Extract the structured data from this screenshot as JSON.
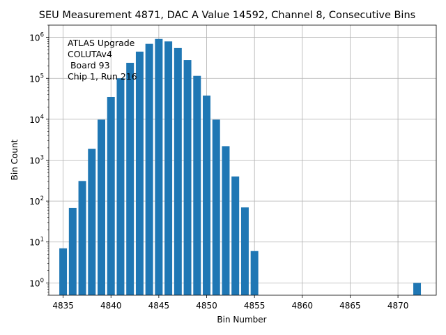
{
  "chart_data": {
    "type": "bar",
    "title": "SEU Measurement 4871, DAC A Value 14592, Channel 8, Consecutive Bins",
    "xlabel": "Bin Number",
    "ylabel": "Bin Count",
    "yscale": "log",
    "xlim": [
      4833.5,
      4874
    ],
    "ylim": [
      0.5,
      2000000
    ],
    "grid": true,
    "bar_color": "#1f77b4",
    "x": [
      4835,
      4836,
      4837,
      4838,
      4839,
      4840,
      4841,
      4842,
      4843,
      4844,
      4845,
      4846,
      4847,
      4848,
      4849,
      4850,
      4851,
      4852,
      4853,
      4854,
      4855,
      4872
    ],
    "values": [
      7,
      68,
      310,
      1900,
      9800,
      35000,
      100000,
      240000,
      450000,
      700000,
      920000,
      800000,
      550000,
      280000,
      115000,
      38000,
      9800,
      2200,
      400,
      70,
      6,
      1
    ],
    "x_ticks": [
      "4835",
      "4840",
      "4845",
      "4850",
      "4855",
      "4860",
      "4865",
      "4870"
    ],
    "x_tick_values": [
      4835,
      4840,
      4845,
      4850,
      4855,
      4860,
      4865,
      4870
    ],
    "y_ticks": [
      {
        "base": "10",
        "exp": "0",
        "value": 1
      },
      {
        "base": "10",
        "exp": "1",
        "value": 10
      },
      {
        "base": "10",
        "exp": "2",
        "value": 100
      },
      {
        "base": "10",
        "exp": "3",
        "value": 1000
      },
      {
        "base": "10",
        "exp": "4",
        "value": 10000
      },
      {
        "base": "10",
        "exp": "5",
        "value": 100000
      },
      {
        "base": "10",
        "exp": "6",
        "value": 1000000
      }
    ],
    "annotation_lines": [
      "ATLAS Upgrade",
      "COLUTAv4",
      " Board 93",
      "Chip 1, Run 216"
    ]
  }
}
